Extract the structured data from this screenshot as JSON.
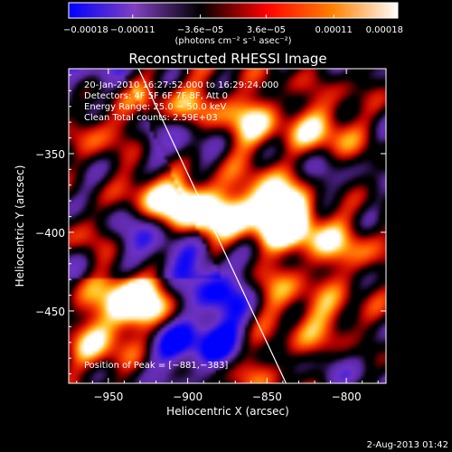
{
  "chart_data": {
    "type": "heatmap",
    "title": "Reconstructed RHESSI Image",
    "xlabel": "Heliocentric X (arcsec)",
    "ylabel": "Heliocentric Y (arcsec)",
    "xlim": [
      -975,
      -775
    ],
    "ylim": [
      -496,
      -296
    ],
    "x_ticks": [
      -950,
      -900,
      -850,
      -800
    ],
    "y_ticks": [
      -350,
      -400,
      -450
    ],
    "x_tick_labels": [
      "−950",
      "−900",
      "−850",
      "−800"
    ],
    "y_tick_labels": [
      "−350",
      "−400",
      "−450"
    ],
    "colorbar": {
      "range": [
        -0.00018,
        0.00018
      ],
      "ticks": [
        -0.00018,
        -0.00011,
        -3.6e-05,
        3.6e-05,
        0.00011,
        0.00018
      ],
      "tick_labels": [
        "−0.00018",
        "−0.00011",
        "−3.6e−05",
        "3.6e−05",
        "0.00011",
        "0.00018"
      ],
      "units": "(photons cm⁻² s⁻¹ asec⁻²)",
      "colors": [
        "#0000ff",
        "#8040c0",
        "#000000",
        "#ff0000",
        "#ff8000",
        "#ffffff"
      ]
    },
    "info_lines": [
      "20-Jan-2010 16:27:52.000 to 16:29:24.000",
      "Detectors: 4F 5F 6F 7F 8F, Att 0",
      "Energy Range: 25.0 − 50.0 keV",
      "Clean    Total counts: 2.59E+03"
    ],
    "peak_label": "Position of Peak = [−881,−383]",
    "peak_position": [
      -881,
      -383
    ],
    "limb_line": [
      [
        -931,
        -296
      ],
      [
        -838,
        -496
      ]
    ],
    "blobs": [
      {
        "x": -922,
        "y": -375,
        "v": 0.9
      },
      {
        "x": -905,
        "y": -385,
        "v": 0.8
      },
      {
        "x": -885,
        "y": -390,
        "v": 1.0
      },
      {
        "x": -850,
        "y": -385,
        "v": 0.7
      },
      {
        "x": -840,
        "y": -385,
        "v": 1.0
      },
      {
        "x": -830,
        "y": -395,
        "v": 0.7
      },
      {
        "x": -860,
        "y": -330,
        "v": 0.8
      },
      {
        "x": -815,
        "y": -335,
        "v": 0.8
      },
      {
        "x": -945,
        "y": -320,
        "v": 0.6
      },
      {
        "x": -900,
        "y": -320,
        "v": 0.6
      },
      {
        "x": -960,
        "y": -400,
        "v": 0.7
      },
      {
        "x": -940,
        "y": -440,
        "v": 0.8
      },
      {
        "x": -925,
        "y": -445,
        "v": 0.9
      },
      {
        "x": -955,
        "y": -470,
        "v": 0.7
      },
      {
        "x": -960,
        "y": -345,
        "v": 0.5
      },
      {
        "x": -800,
        "y": -410,
        "v": 0.6
      },
      {
        "x": -845,
        "y": -440,
        "v": 0.6
      },
      {
        "x": -810,
        "y": -460,
        "v": 0.7
      },
      {
        "x": -860,
        "y": -485,
        "v": 0.5
      },
      {
        "x": -880,
        "y": -470,
        "v": -0.9
      },
      {
        "x": -910,
        "y": -470,
        "v": -0.8
      },
      {
        "x": -870,
        "y": -440,
        "v": -0.6
      },
      {
        "x": -940,
        "y": -400,
        "v": -0.5
      },
      {
        "x": -910,
        "y": -410,
        "v": -0.5
      },
      {
        "x": -905,
        "y": -345,
        "v": -0.6
      },
      {
        "x": -820,
        "y": -370,
        "v": -0.5
      },
      {
        "x": -960,
        "y": -300,
        "v": -0.4
      },
      {
        "x": -800,
        "y": -480,
        "v": -0.4
      },
      {
        "x": -890,
        "y": -430,
        "v": -0.5
      }
    ]
  },
  "footer": {
    "timestamp": "2-Aug-2013 01:42"
  }
}
